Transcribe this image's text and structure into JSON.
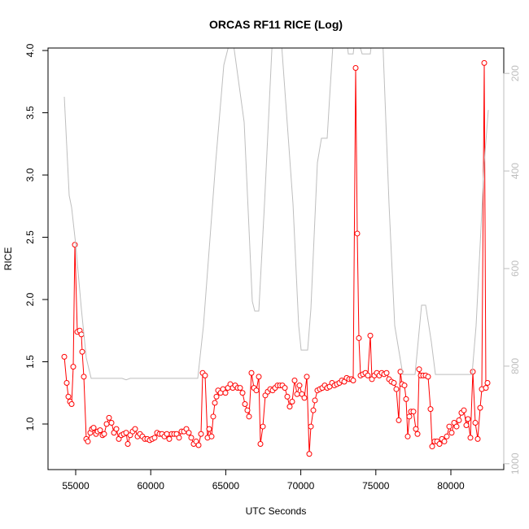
{
  "chart_data": {
    "type": "line",
    "title": "ORCAS RF11 RICE (Log)",
    "x_label": "UTC Seconds",
    "y_label": "RICE",
    "xlim": [
      53156,
      83525
    ],
    "xticks": [
      55000,
      60000,
      65000,
      70000,
      75000,
      80000
    ],
    "ylim": [
      0.634,
      4.02
    ],
    "yticks": [
      {
        "value": 1,
        "label": "1.0"
      },
      1.5,
      {
        "value": 2,
        "label": "2.0"
      },
      2.5,
      {
        "value": 3,
        "label": "3.0"
      },
      3.5,
      {
        "value": 4,
        "label": "4.0"
      }
    ],
    "y2lim": [
      1012,
      148
    ],
    "y2ticks": [
      200,
      400,
      600,
      800,
      1000
    ],
    "y2_color": "#bebebe",
    "series": [
      {
        "color": "#ff0000",
        "marker": "circle",
        "x": [
          54241,
          54403,
          54512,
          54620,
          54729,
          54837,
          54946,
          55108,
          55271,
          55379,
          55434,
          55542,
          55705,
          55813,
          55976,
          56084,
          56193,
          56356,
          56464,
          56627,
          56789,
          56898,
          57061,
          57223,
          57386,
          57549,
          57711,
          57874,
          58037,
          58199,
          58362,
          58471,
          58633,
          58796,
          58959,
          59122,
          59284,
          59447,
          59609,
          59772,
          59935,
          60097,
          60260,
          60423,
          60586,
          60748,
          60911,
          61074,
          61236,
          61399,
          61562,
          61724,
          61887,
          62050,
          62212,
          62375,
          62538,
          62700,
          62863,
          63026,
          63189,
          63351,
          63460,
          63622,
          63785,
          63894,
          64056,
          64165,
          64273,
          64382,
          64490,
          64653,
          64815,
          64978,
          65141,
          65304,
          65466,
          65629,
          65792,
          65954,
          66117,
          66280,
          66442,
          66551,
          66714,
          66876,
          67039,
          67202,
          67310,
          67473,
          67635,
          67798,
          67961,
          68123,
          68286,
          68449,
          68612,
          68774,
          68937,
          69100,
          69262,
          69425,
          69588,
          69750,
          69913,
          70076,
          70239,
          70401,
          70564,
          70672,
          70835,
          70943,
          71106,
          71269,
          71432,
          71594,
          71757,
          71920,
          72082,
          72245,
          72408,
          72570,
          72733,
          72896,
          73058,
          73221,
          73384,
          73492,
          73655,
          73763,
          73872,
          73980,
          74143,
          74306,
          74468,
          74631,
          74740,
          74902,
          75065,
          75228,
          75390,
          75553,
          75716,
          75878,
          76041,
          76204,
          76366,
          76529,
          76638,
          76746,
          76909,
          77017,
          77126,
          77234,
          77343,
          77505,
          77668,
          77777,
          77885,
          77994,
          78156,
          78319,
          78482,
          78644,
          78753,
          78916,
          79078,
          79241,
          79404,
          79566,
          79729,
          79892,
          80054,
          80217,
          80379,
          80542,
          80705,
          80868,
          81030,
          81139,
          81302,
          81464,
          81627,
          81790,
          81952,
          82061,
          82224,
          82332,
          82441
        ],
        "values": [
          1.54,
          1.33,
          1.22,
          1.18,
          1.16,
          1.46,
          2.44,
          1.74,
          1.75,
          1.72,
          1.58,
          1.38,
          0.88,
          0.86,
          0.93,
          0.96,
          0.97,
          0.92,
          0.94,
          0.95,
          0.91,
          0.92,
          1.0,
          1.05,
          1.01,
          0.93,
          0.96,
          0.88,
          0.91,
          0.92,
          0.93,
          0.84,
          0.91,
          0.94,
          0.96,
          0.9,
          0.92,
          0.9,
          0.88,
          0.88,
          0.87,
          0.88,
          0.89,
          0.93,
          0.92,
          0.92,
          0.9,
          0.92,
          0.88,
          0.92,
          0.92,
          0.92,
          0.89,
          0.94,
          0.94,
          0.96,
          0.93,
          0.89,
          0.84,
          0.86,
          0.83,
          0.92,
          1.41,
          1.39,
          0.89,
          0.96,
          0.9,
          1.06,
          1.17,
          1.22,
          1.27,
          1.25,
          1.28,
          1.25,
          1.29,
          1.32,
          1.29,
          1.31,
          1.29,
          1.29,
          1.25,
          1.16,
          1.11,
          1.06,
          1.41,
          1.29,
          1.27,
          1.38,
          0.84,
          0.98,
          1.23,
          1.26,
          1.28,
          1.27,
          1.29,
          1.31,
          1.31,
          1.31,
          1.29,
          1.22,
          1.14,
          1.18,
          1.35,
          1.24,
          1.31,
          1.24,
          1.21,
          1.38,
          0.76,
          0.98,
          1.11,
          1.19,
          1.27,
          1.28,
          1.29,
          1.31,
          1.29,
          1.3,
          1.33,
          1.31,
          1.32,
          1.33,
          1.35,
          1.34,
          1.37,
          1.36,
          1.36,
          1.35,
          3.86,
          2.53,
          1.69,
          1.39,
          1.4,
          1.41,
          1.39,
          1.71,
          1.36,
          1.39,
          1.41,
          1.39,
          1.41,
          1.4,
          1.41,
          1.36,
          1.34,
          1.33,
          1.28,
          1.03,
          1.42,
          1.32,
          1.31,
          1.2,
          0.9,
          1.06,
          1.1,
          1.1,
          0.96,
          0.92,
          1.44,
          1.39,
          1.39,
          1.39,
          1.38,
          1.12,
          0.82,
          0.86,
          0.86,
          0.84,
          0.88,
          0.86,
          0.9,
          0.98,
          0.93,
          1.01,
          0.98,
          1.03,
          1.09,
          1.11,
          0.99,
          1.04,
          0.89,
          1.42,
          1.01,
          0.88,
          1.13,
          1.28,
          3.9,
          1.29,
          1.33
        ]
      },
      {
        "color": "#bebebe",
        "axis": "y2",
        "x": [
          54241,
          54566,
          54729,
          55000,
          55379,
          55705,
          56030,
          58091,
          58362,
          58633,
          63134,
          63514,
          64327,
          64870,
          65412,
          66226,
          66768,
          66931,
          67202,
          67582,
          68124,
          68666,
          69480,
          69859,
          70022,
          70456,
          70672,
          71106,
          71377,
          71757,
          71919,
          72190,
          73004,
          73166,
          73491,
          73654,
          74088,
          74630,
          74793,
          75444,
          75878,
          76258,
          76800,
          77614,
          78048,
          78319,
          78698,
          78970,
          81410,
          81681,
          82224,
          82495
        ],
        "values": [
          248,
          450,
          475,
          550,
          683,
          783,
          825,
          825,
          828,
          825,
          825,
          717,
          383,
          183,
          117,
          300,
          667,
          687,
          687,
          467,
          117,
          117,
          467,
          717,
          767,
          767,
          683,
          383,
          333,
          333,
          250,
          117,
          117,
          160,
          160,
          117,
          160,
          160,
          117,
          117,
          467,
          717,
          817,
          817,
          675,
          675,
          750,
          817,
          817,
          717,
          383,
          275
        ]
      }
    ]
  }
}
